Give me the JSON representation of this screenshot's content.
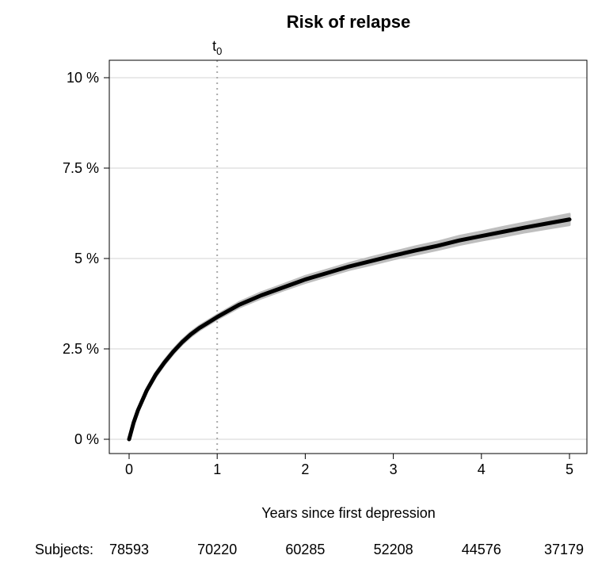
{
  "chart_data": {
    "type": "line",
    "title": "Risk of relapse",
    "xlabel": "Years since first depression",
    "ylabel": "",
    "xlim": [
      0,
      5
    ],
    "ylim": [
      0,
      10
    ],
    "x_ticks": [
      0,
      1,
      2,
      3,
      4,
      5
    ],
    "x_tick_labels": [
      "0",
      "1",
      "2",
      "3",
      "4",
      "5"
    ],
    "y_ticks": [
      0,
      2.5,
      5,
      7.5,
      10
    ],
    "y_tick_labels": [
      "0 %",
      "2.5 %",
      "5 %",
      "7.5 %",
      "10 %"
    ],
    "grid": "horizontal",
    "reference_line": {
      "x": 1,
      "label_base": "t",
      "label_sub": "0",
      "style": "dotted"
    },
    "series": [
      {
        "x": [
          0,
          0.05,
          0.1,
          0.2,
          0.3,
          0.4,
          0.5,
          0.6,
          0.7,
          0.8,
          0.9,
          1.0,
          1.25,
          1.5,
          1.75,
          2.0,
          2.25,
          2.5,
          2.75,
          3.0,
          3.25,
          3.5,
          3.75,
          4.0,
          4.25,
          4.5,
          4.75,
          5.0
        ],
        "values": [
          0,
          0.45,
          0.8,
          1.35,
          1.78,
          2.12,
          2.42,
          2.68,
          2.9,
          3.08,
          3.23,
          3.38,
          3.72,
          3.98,
          4.2,
          4.42,
          4.6,
          4.78,
          4.93,
          5.08,
          5.22,
          5.35,
          5.5,
          5.62,
          5.74,
          5.86,
          5.97,
          6.08
        ],
        "lower": [
          0,
          0.42,
          0.76,
          1.3,
          1.72,
          2.06,
          2.36,
          2.62,
          2.84,
          3.02,
          3.17,
          3.32,
          3.65,
          3.9,
          4.12,
          4.33,
          4.51,
          4.69,
          4.83,
          4.98,
          5.11,
          5.24,
          5.38,
          5.5,
          5.61,
          5.73,
          5.83,
          5.93
        ],
        "upper": [
          0,
          0.48,
          0.84,
          1.4,
          1.84,
          2.18,
          2.48,
          2.74,
          2.96,
          3.14,
          3.29,
          3.44,
          3.79,
          4.06,
          4.28,
          4.51,
          4.69,
          4.87,
          5.03,
          5.18,
          5.33,
          5.46,
          5.62,
          5.74,
          5.87,
          5.99,
          6.11,
          6.23
        ],
        "color": "#000000",
        "band_color": "#bebebe"
      }
    ],
    "risk_table": {
      "label": "Subjects:",
      "values": [
        "78593",
        "70220",
        "60285",
        "52208",
        "44576",
        "37179"
      ]
    }
  }
}
